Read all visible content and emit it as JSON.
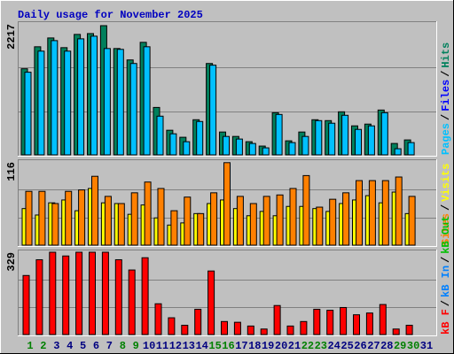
{
  "chart_data": [
    {
      "type": "bar",
      "title": "Daily usage for November 2025",
      "ylim": [
        0,
        2217
      ],
      "yticks": [
        2217
      ],
      "grid": true,
      "legend_separator": "/",
      "legend": [
        {
          "name": "Pages",
          "color": "#00c0ff"
        },
        {
          "name": "Files",
          "color": "#0000ff"
        },
        {
          "name": "Hits",
          "color": "#00805c"
        }
      ],
      "series": [
        {
          "color": "#00805c",
          "values": [
            1458,
            1830,
            1979,
            1815,
            2039,
            2053,
            2187,
            1800,
            1607,
            1905,
            803,
            417,
            298,
            595,
            1547,
            387,
            312,
            223,
            149,
            714,
            238,
            387,
            595,
            580,
            729,
            491,
            521,
            759,
            193,
            253,
            0
          ]
        },
        {
          "color": "#00c0ff",
          "values": [
            1399,
            1756,
            1934,
            1756,
            1964,
            2009,
            1800,
            1786,
            1547,
            1830,
            655,
            357,
            223,
            565,
            1518,
            312,
            268,
            193,
            119,
            684,
            208,
            312,
            580,
            536,
            670,
            431,
            491,
            714,
            104,
            208,
            0
          ]
        }
      ]
    },
    {
      "type": "bar",
      "ylim": [
        0,
        116
      ],
      "yticks": [
        116
      ],
      "grid": true,
      "legend_separator": "/",
      "legend": [
        {
          "name": "Sites",
          "color": "#ff8000"
        },
        {
          "name": "Visits",
          "color": "#ffff00"
        }
      ],
      "series": [
        {
          "color": "#ffff00",
          "values": [
            51,
            42,
            59,
            63,
            48,
            79,
            59,
            58,
            43,
            56,
            38,
            28,
            31,
            44,
            58,
            63,
            51,
            41,
            47,
            41,
            54,
            54,
            51,
            47,
            58,
            63,
            69,
            59,
            74,
            44,
            0
          ]
        },
        {
          "color": "#ff8000",
          "values": [
            75,
            75,
            58,
            75,
            77,
            96,
            68,
            58,
            73,
            88,
            79,
            48,
            67,
            44,
            73,
            115,
            68,
            58,
            68,
            70,
            79,
            97,
            53,
            64,
            73,
            90,
            90,
            90,
            95,
            68,
            0
          ]
        }
      ]
    },
    {
      "type": "bar",
      "ylim": [
        0,
        329
      ],
      "yticks": [
        329
      ],
      "grid": true,
      "legend_separator": "/",
      "legend": [
        {
          "name": "kB F",
          "color": "#ff0000"
        },
        {
          "name": "kB In",
          "color": "#0080ff"
        },
        {
          "name": "kB Out",
          "color": "#00c000"
        }
      ],
      "series": [
        {
          "color": "#ff0000",
          "values": [
            236,
            299,
            329,
            314,
            329,
            329,
            329,
            299,
            258,
            307,
            123,
            67,
            37,
            101,
            254,
            52,
            49,
            34,
            22,
            116,
            34,
            52,
            101,
            97,
            108,
            79,
            86,
            120,
            22,
            37,
            0
          ]
        }
      ],
      "categories": [
        "1",
        "2",
        "3",
        "4",
        "5",
        "6",
        "7",
        "8",
        "9",
        "10",
        "11",
        "12",
        "13",
        "14",
        "15",
        "16",
        "17",
        "18",
        "19",
        "20",
        "21",
        "22",
        "23",
        "24",
        "25",
        "26",
        "27",
        "28",
        "29",
        "30",
        "31"
      ],
      "category_colors": [
        "#008000",
        "#008000",
        "#000080",
        "#000080",
        "#000080",
        "#000080",
        "#000080",
        "#008000",
        "#008000",
        "#000080",
        "#000080",
        "#000080",
        "#000080",
        "#000080",
        "#008000",
        "#008000",
        "#000080",
        "#000080",
        "#000080",
        "#000080",
        "#000080",
        "#008000",
        "#008000",
        "#000080",
        "#000080",
        "#000080",
        "#000080",
        "#000080",
        "#008000",
        "#008000",
        "#000080"
      ]
    }
  ]
}
